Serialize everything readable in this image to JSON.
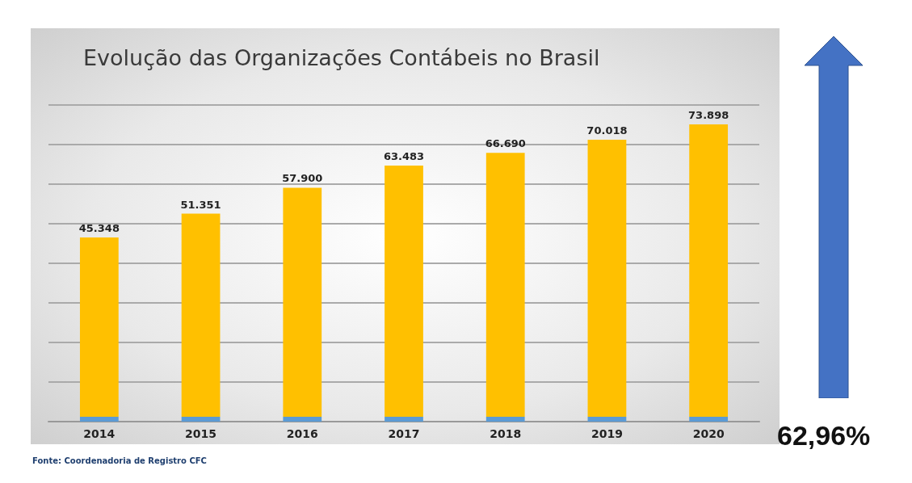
{
  "chart_data": {
    "type": "bar",
    "title": "Evolução das Organizações Contábeis no Brasil",
    "categories": [
      "2014",
      "2015",
      "2016",
      "2017",
      "2018",
      "2019",
      "2020"
    ],
    "stacked": true,
    "series": [
      {
        "color": "#5b9bd5",
        "values": [
          1200,
          1200,
          1200,
          1200,
          1200,
          1200,
          1200
        ]
      },
      {
        "color": "#ffc000",
        "values": [
          45348,
          51351,
          57900,
          63483,
          66690,
          70018,
          73898
        ],
        "value_labels": [
          "45.348",
          "51.351",
          "57.900",
          "63.483",
          "66.690",
          "70.018",
          "73.898"
        ]
      }
    ],
    "ylim": [
      0,
      80000
    ],
    "yticks": [
      {
        "value": 0,
        "label": null
      },
      {
        "value": 10000,
        "label": null
      },
      {
        "value": 20000,
        "label": null
      },
      {
        "value": 30000,
        "label": null
      },
      {
        "value": 40000,
        "label": null
      },
      {
        "value": 50000,
        "label": null
      },
      {
        "value": 60000,
        "label": null
      },
      {
        "value": 70000,
        "label": null
      },
      {
        "value": 80000,
        "label": null
      }
    ],
    "tick_labels": "x",
    "grid": "y",
    "annotations": [
      "Fonte: Coordenadoria de Registro CFC",
      "62,96%"
    ]
  }
}
